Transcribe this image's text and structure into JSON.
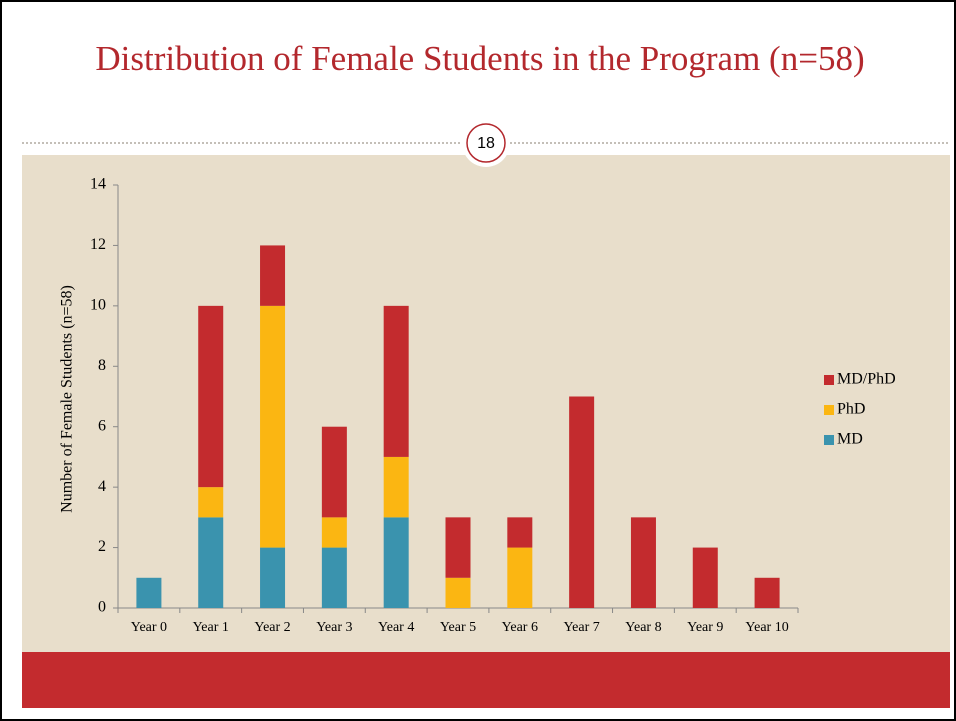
{
  "slide_number": "18",
  "chart_data": {
    "type": "stacked_bar",
    "title": "Distribution of Female Students in the Program (n=58)",
    "y_label": "Number of Female Students (n=58)",
    "categories": [
      "Year 0",
      "Year 1",
      "Year 2",
      "Year 3",
      "Year 4",
      "Year 5",
      "Year 6",
      "Year 7",
      "Year 8",
      "Year 9",
      "Year 10"
    ],
    "series": [
      {
        "name": "MD",
        "color": "#3a93ae",
        "values": [
          1,
          3,
          2,
          2,
          3,
          0,
          0,
          0,
          0,
          0,
          0
        ]
      },
      {
        "name": "PhD",
        "color": "#fbb612",
        "values": [
          0,
          1,
          8,
          1,
          2,
          1,
          2,
          0,
          0,
          0,
          0
        ]
      },
      {
        "name": "MD/PhD",
        "color": "#c32b2e",
        "values": [
          0,
          6,
          2,
          3,
          5,
          2,
          1,
          7,
          3,
          2,
          1
        ]
      }
    ],
    "ylim": [
      0,
      14
    ],
    "yticks": [
      0,
      2,
      4,
      6,
      8,
      10,
      12,
      14
    ],
    "grid": false,
    "legend": "right"
  }
}
